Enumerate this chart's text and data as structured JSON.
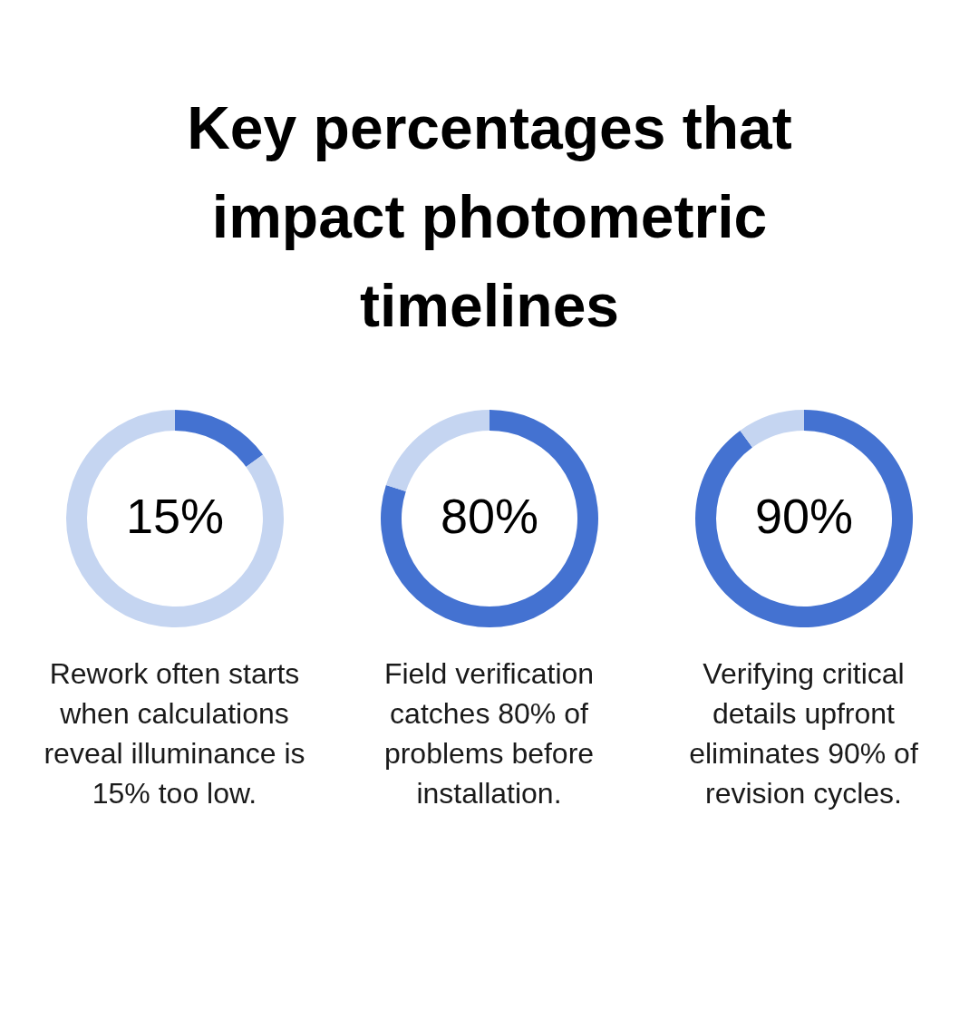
{
  "chart_data": [
    {
      "type": "donut",
      "title": "Key percentages that impact photometric timelines",
      "categories": [
        null,
        null
      ],
      "values": [
        15,
        85
      ],
      "colors": [
        "#4472d1",
        "#c5d5f1"
      ],
      "value_labels": [
        "15%",
        null
      ],
      "annotations": [
        "Rework often starts when calculations reveal illuminance is 15% too low."
      ]
    },
    {
      "type": "donut",
      "categories": [
        null,
        null
      ],
      "values": [
        80,
        20
      ],
      "colors": [
        "#4472d1",
        "#c5d5f1"
      ],
      "value_labels": [
        "80%",
        null
      ],
      "annotations": [
        "Field verification catches 80% of problems before installation."
      ]
    },
    {
      "type": "donut",
      "categories": [
        null,
        null
      ],
      "values": [
        90,
        10
      ],
      "colors": [
        "#4472d1",
        "#c5d5f1"
      ],
      "value_labels": [
        "90%",
        null
      ],
      "annotations": [
        "Verifying critical details upfront eliminates 90% of revision cycles."
      ]
    }
  ]
}
